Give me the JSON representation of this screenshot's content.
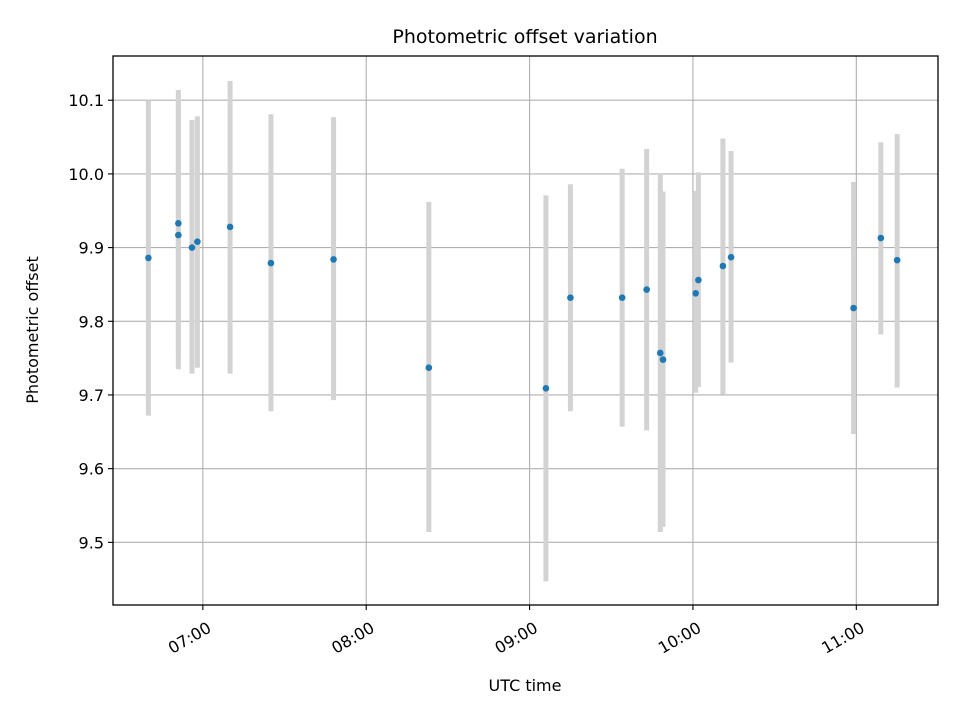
{
  "chart_data": {
    "type": "scatter",
    "title": "Photometric offset variation",
    "xlabel": "UTC time",
    "ylabel": "Photometric offset",
    "x_unit": "UTC time (HH:MM)",
    "xlim": [
      "06:27",
      "11:30"
    ],
    "ylim": [
      9.415,
      10.16
    ],
    "x_ticks": [
      "07:00",
      "08:00",
      "09:00",
      "10:00",
      "11:00"
    ],
    "y_ticks": [
      "9.5",
      "9.6",
      "9.7",
      "9.8",
      "9.9",
      "10.0",
      "10.1"
    ],
    "grid": true,
    "colors": {
      "points": "#1f77b4",
      "error_bars": "#d3d3d3",
      "grid": "#b0b0b0"
    },
    "points": [
      {
        "x": "06:40",
        "y": 9.886,
        "ylow": 9.672,
        "yhigh": 10.1
      },
      {
        "x": "06:51",
        "y": 9.917,
        "ylow": 9.735,
        "yhigh": 10.098
      },
      {
        "x": "06:51",
        "y": 9.933,
        "ylow": 9.754,
        "yhigh": 10.114
      },
      {
        "x": "06:56",
        "y": 9.9,
        "ylow": 9.729,
        "yhigh": 10.073
      },
      {
        "x": "06:58",
        "y": 9.908,
        "ylow": 9.737,
        "yhigh": 10.078
      },
      {
        "x": "07:10",
        "y": 9.928,
        "ylow": 9.729,
        "yhigh": 10.126
      },
      {
        "x": "07:25",
        "y": 9.879,
        "ylow": 9.678,
        "yhigh": 10.081
      },
      {
        "x": "07:48",
        "y": 9.884,
        "ylow": 9.693,
        "yhigh": 10.077
      },
      {
        "x": "08:23",
        "y": 9.737,
        "ylow": 9.514,
        "yhigh": 9.962
      },
      {
        "x": "09:06",
        "y": 9.709,
        "ylow": 9.447,
        "yhigh": 9.971
      },
      {
        "x": "09:15",
        "y": 9.832,
        "ylow": 9.678,
        "yhigh": 9.986
      },
      {
        "x": "09:34",
        "y": 9.832,
        "ylow": 9.657,
        "yhigh": 10.007
      },
      {
        "x": "09:43",
        "y": 9.843,
        "ylow": 9.652,
        "yhigh": 10.034
      },
      {
        "x": "09:48",
        "y": 9.757,
        "ylow": 9.514,
        "yhigh": 10.001
      },
      {
        "x": "09:49",
        "y": 9.748,
        "ylow": 9.521,
        "yhigh": 9.976
      },
      {
        "x": "10:01",
        "y": 9.838,
        "ylow": 9.703,
        "yhigh": 9.977
      },
      {
        "x": "10:02",
        "y": 9.856,
        "ylow": 9.711,
        "yhigh": 10.002
      },
      {
        "x": "10:11",
        "y": 9.875,
        "ylow": 9.701,
        "yhigh": 10.048
      },
      {
        "x": "10:14",
        "y": 9.887,
        "ylow": 9.744,
        "yhigh": 10.031
      },
      {
        "x": "10:59",
        "y": 9.818,
        "ylow": 9.647,
        "yhigh": 9.989
      },
      {
        "x": "11:09",
        "y": 9.913,
        "ylow": 9.782,
        "yhigh": 10.043
      },
      {
        "x": "11:15",
        "y": 9.883,
        "ylow": 9.71,
        "yhigh": 10.054
      }
    ]
  }
}
